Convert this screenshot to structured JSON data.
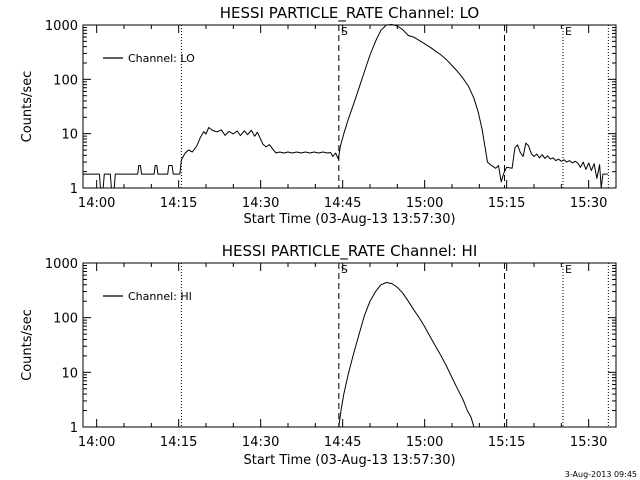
{
  "footer": {
    "timestamp": "3-Aug-2013 09:45"
  },
  "chart_data": [
    {
      "type": "line",
      "title": "HESSI PARTICLE_RATE Channel: LO",
      "xlabel": "Start Time (03-Aug-13 13:57:30)",
      "ylabel": "Counts/sec",
      "y_scale": "log",
      "ylim": [
        1,
        1000
      ],
      "x_unit": "minutes after 14:00 on 03-Aug-13",
      "xlim": [
        -2.5,
        95
      ],
      "xticks": [
        0,
        15,
        30,
        45,
        60,
        75,
        90
      ],
      "xtick_labels": [
        "14:00",
        "14:15",
        "14:30",
        "14:45",
        "15:00",
        "15:15",
        "15:30"
      ],
      "yticks": [
        1,
        10,
        100,
        1000
      ],
      "ytick_labels": [
        "1",
        "10",
        "100",
        "1000"
      ],
      "legend": {
        "label": "Channel: LO",
        "position": "top-left"
      },
      "markers": {
        "dotted": [
          15.5,
          85.3,
          93.6
        ],
        "dashed": [
          44.3,
          74.6
        ],
        "labels": [
          {
            "x": 44.3,
            "text": "S"
          },
          {
            "x": 85.3,
            "text": "E"
          }
        ]
      },
      "series": [
        {
          "name": "Channel: LO",
          "points": [
            [
              -2.5,
              1.8
            ],
            [
              0.5,
              1.8
            ],
            [
              0.7,
              1.0
            ],
            [
              1.2,
              1.0
            ],
            [
              1.4,
              1.8
            ],
            [
              2.5,
              1.8
            ],
            [
              2.7,
              1.0
            ],
            [
              3.2,
              1.0
            ],
            [
              3.4,
              1.8
            ],
            [
              7.5,
              1.8
            ],
            [
              7.7,
              2.6
            ],
            [
              8.0,
              2.6
            ],
            [
              8.2,
              1.8
            ],
            [
              10.5,
              1.8
            ],
            [
              10.7,
              2.6
            ],
            [
              11.0,
              2.6
            ],
            [
              11.2,
              1.8
            ],
            [
              13.0,
              1.8
            ],
            [
              13.2,
              2.6
            ],
            [
              13.8,
              2.6
            ],
            [
              14.0,
              1.8
            ],
            [
              15.2,
              1.8
            ],
            [
              15.5,
              3.3
            ],
            [
              16.2,
              4.4
            ],
            [
              16.8,
              5.0
            ],
            [
              17.5,
              4.6
            ],
            [
              18.3,
              5.9
            ],
            [
              19.0,
              8.6
            ],
            [
              19.6,
              10.9
            ],
            [
              20.0,
              9.8
            ],
            [
              20.5,
              13.0
            ],
            [
              21.2,
              11.5
            ],
            [
              22.0,
              10.8
            ],
            [
              22.8,
              11.8
            ],
            [
              23.5,
              9.3
            ],
            [
              24.2,
              11.0
            ],
            [
              25.0,
              9.9
            ],
            [
              25.7,
              11.2
            ],
            [
              26.3,
              9.2
            ],
            [
              27.0,
              11.3
            ],
            [
              27.6,
              9.6
            ],
            [
              28.3,
              11.5
            ],
            [
              28.9,
              9.0
            ],
            [
              29.4,
              10.6
            ],
            [
              29.9,
              8.3
            ],
            [
              30.4,
              6.4
            ],
            [
              31.0,
              5.7
            ],
            [
              31.6,
              6.3
            ],
            [
              32.2,
              5.2
            ],
            [
              32.8,
              4.4
            ],
            [
              33.5,
              4.6
            ],
            [
              34.2,
              4.4
            ],
            [
              35.0,
              4.6
            ],
            [
              35.8,
              4.4
            ],
            [
              36.6,
              4.6
            ],
            [
              37.4,
              4.4
            ],
            [
              38.2,
              4.6
            ],
            [
              39.0,
              4.4
            ],
            [
              39.8,
              4.6
            ],
            [
              40.6,
              4.4
            ],
            [
              41.4,
              4.6
            ],
            [
              42.2,
              4.4
            ],
            [
              42.8,
              4.5
            ],
            [
              43.2,
              3.8
            ],
            [
              43.7,
              4.4
            ],
            [
              44.2,
              3.4
            ],
            [
              44.6,
              6.0
            ],
            [
              45.2,
              10.0
            ],
            [
              46.0,
              18.0
            ],
            [
              47.0,
              35.0
            ],
            [
              48.0,
              70.0
            ],
            [
              49.0,
              140.0
            ],
            [
              50.0,
              280.0
            ],
            [
              51.0,
              500.0
            ],
            [
              52.0,
              800.0
            ],
            [
              53.0,
              1000.0
            ],
            [
              54.0,
              1020.0
            ],
            [
              55.0,
              960.0
            ],
            [
              56.0,
              820.0
            ],
            [
              57.0,
              640.0
            ],
            [
              58.0,
              600.0
            ],
            [
              59.0,
              520.0
            ],
            [
              60.0,
              450.0
            ],
            [
              61.0,
              390.0
            ],
            [
              62.0,
              330.0
            ],
            [
              63.0,
              280.0
            ],
            [
              64.0,
              230.0
            ],
            [
              65.0,
              180.0
            ],
            [
              66.0,
              140.0
            ],
            [
              67.0,
              105.0
            ],
            [
              68.0,
              75.0
            ],
            [
              69.0,
              45.0
            ],
            [
              69.8,
              25.0
            ],
            [
              70.5,
              12.0
            ],
            [
              71.0,
              6.0
            ],
            [
              71.5,
              3.0
            ],
            [
              72.0,
              2.7
            ],
            [
              73.0,
              2.3
            ],
            [
              73.5,
              2.6
            ],
            [
              74.0,
              1.3
            ],
            [
              74.5,
              1.9
            ],
            [
              75.0,
              2.4
            ],
            [
              76.0,
              2.3
            ],
            [
              76.5,
              5.5
            ],
            [
              77.0,
              6.2
            ],
            [
              77.5,
              4.5
            ],
            [
              78.0,
              3.8
            ],
            [
              78.5,
              6.7
            ],
            [
              79.0,
              6.0
            ],
            [
              79.5,
              4.3
            ],
            [
              80.0,
              3.8
            ],
            [
              80.5,
              4.2
            ],
            [
              81.0,
              3.6
            ],
            [
              81.5,
              4.1
            ],
            [
              82.0,
              3.5
            ],
            [
              82.5,
              3.9
            ],
            [
              83.0,
              3.4
            ],
            [
              83.5,
              3.6
            ],
            [
              84.0,
              3.2
            ],
            [
              84.5,
              3.4
            ],
            [
              85.0,
              3.1
            ],
            [
              85.5,
              3.3
            ],
            [
              86.0,
              3.0
            ],
            [
              86.5,
              3.2
            ],
            [
              87.0,
              2.9
            ],
            [
              87.5,
              3.1
            ],
            [
              88.0,
              2.9
            ],
            [
              88.5,
              2.4
            ],
            [
              89.0,
              3.0
            ],
            [
              89.5,
              2.2
            ],
            [
              90.0,
              2.9
            ],
            [
              90.5,
              2.1
            ],
            [
              91.0,
              2.8
            ],
            [
              91.5,
              1.5
            ],
            [
              92.0,
              2.7
            ],
            [
              92.3,
              1.0
            ],
            [
              92.6,
              1.8
            ],
            [
              93.5,
              1.8
            ]
          ]
        }
      ]
    },
    {
      "type": "line",
      "title": "HESSI PARTICLE_RATE Channel: HI",
      "xlabel": "Start Time (03-Aug-13 13:57:30)",
      "ylabel": "Counts/sec",
      "y_scale": "log",
      "ylim": [
        1,
        1000
      ],
      "x_unit": "minutes after 14:00 on 03-Aug-13",
      "xlim": [
        -2.5,
        95
      ],
      "xticks": [
        0,
        15,
        30,
        45,
        60,
        75,
        90
      ],
      "xtick_labels": [
        "14:00",
        "14:15",
        "14:30",
        "14:45",
        "15:00",
        "15:15",
        "15:30"
      ],
      "yticks": [
        1,
        10,
        100,
        1000
      ],
      "ytick_labels": [
        "1",
        "10",
        "100",
        "1000"
      ],
      "legend": {
        "label": "Channel: HI",
        "position": "top-left"
      },
      "markers": {
        "dotted": [
          15.5,
          85.3,
          93.6
        ],
        "dashed": [
          44.3,
          74.6
        ],
        "labels": [
          {
            "x": 44.3,
            "text": "S"
          },
          {
            "x": 85.3,
            "text": "E"
          }
        ]
      },
      "series": [
        {
          "name": "Channel: HI",
          "points": [
            [
              44.3,
              1.0
            ],
            [
              44.7,
              2.0
            ],
            [
              45.2,
              4.0
            ],
            [
              46.0,
              9.0
            ],
            [
              47.0,
              22.0
            ],
            [
              48.0,
              50.0
            ],
            [
              49.0,
              110.0
            ],
            [
              50.0,
              200.0
            ],
            [
              51.0,
              300.0
            ],
            [
              52.0,
              400.0
            ],
            [
              53.0,
              440.0
            ],
            [
              54.0,
              420.0
            ],
            [
              55.0,
              360.0
            ],
            [
              56.0,
              280.0
            ],
            [
              57.0,
              200.0
            ],
            [
              58.0,
              140.0
            ],
            [
              59.0,
              100.0
            ],
            [
              60.0,
              68.0
            ],
            [
              61.0,
              45.0
            ],
            [
              62.0,
              30.0
            ],
            [
              63.0,
              20.0
            ],
            [
              64.0,
              13.0
            ],
            [
              65.0,
              8.0
            ],
            [
              66.0,
              5.0
            ],
            [
              67.0,
              3.2
            ],
            [
              67.8,
              2.0
            ],
            [
              68.5,
              1.5
            ],
            [
              69.0,
              1.0
            ]
          ]
        }
      ]
    }
  ]
}
